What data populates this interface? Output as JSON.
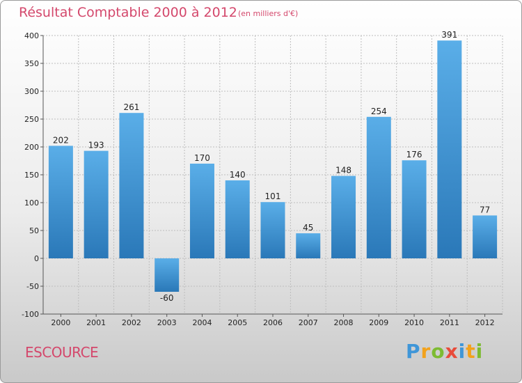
{
  "header": {
    "title": "Résultat Comptable 2000 à 2012",
    "subtitle": "(en milliers d'€)"
  },
  "footer": {
    "commune": "ESCOURCE",
    "logo": "Proxiti"
  },
  "colors": {
    "title": "#d4486c",
    "bar_top": "#5aaee8",
    "bar_bottom": "#2a78b8"
  },
  "chart_data": {
    "type": "bar",
    "title": "Résultat Comptable 2000 à 2012",
    "subtitle": "(en milliers d'€)",
    "xlabel": "",
    "ylabel": "",
    "categories": [
      "2000",
      "2001",
      "2002",
      "2003",
      "2004",
      "2005",
      "2006",
      "2007",
      "2008",
      "2009",
      "2010",
      "2011",
      "2012"
    ],
    "values": [
      202,
      193,
      261,
      -60,
      170,
      140,
      101,
      45,
      148,
      254,
      176,
      391,
      77
    ],
    "value_labels": [
      "202",
      "193",
      "261",
      "-60",
      "170",
      "140",
      "101",
      "45",
      "148",
      "254",
      "176",
      "391",
      "77"
    ],
    "ylim": [
      -100,
      400
    ],
    "yticks": [
      -100,
      -50,
      0,
      50,
      100,
      150,
      200,
      250,
      300,
      350,
      400
    ],
    "grid": true
  }
}
